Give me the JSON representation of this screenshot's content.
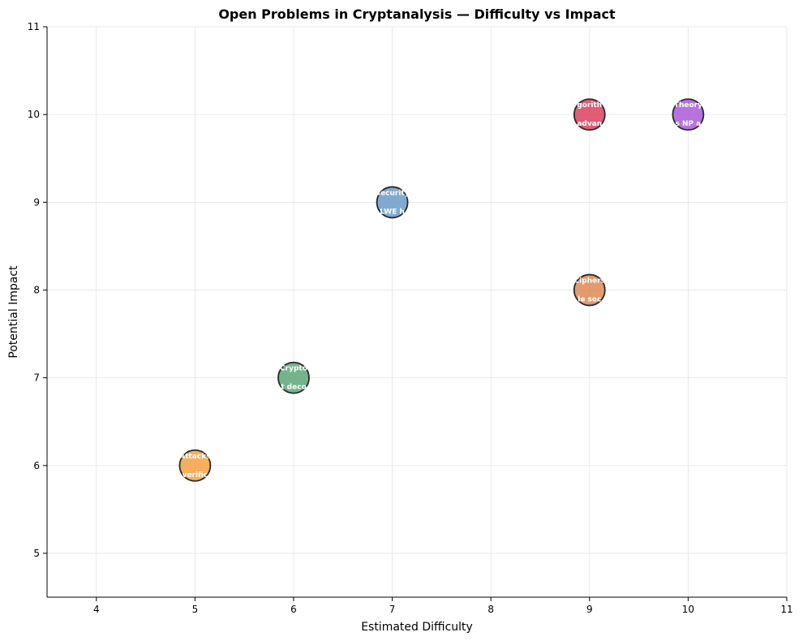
{
  "chart_data": {
    "type": "scatter",
    "title": "Open Problems in Cryptanalysis — Difficulty vs Impact",
    "xlabel": "Estimated Difficulty",
    "ylabel": "Potential Impact",
    "xlim": [
      3.5,
      11
    ],
    "ylim": [
      4.5,
      11
    ],
    "xticks": [
      4,
      5,
      6,
      7,
      8,
      9,
      10,
      11
    ],
    "yticks": [
      5,
      6,
      7,
      8,
      9,
      10,
      11
    ],
    "grid": true,
    "points": [
      {
        "x": 5,
        "y": 6,
        "color": "#F5A142",
        "label_top": "Attacks",
        "label_bottom": "verific"
      },
      {
        "x": 6,
        "y": 7,
        "color": "#5BA779",
        "label_top": "Crypto",
        "label_bottom": "t deco"
      },
      {
        "x": 7,
        "y": 9,
        "color": "#6B9BC8",
        "label_top": "Security",
        "label_bottom": "LWE h"
      },
      {
        "x": 9,
        "y": 8,
        "color": "#DC8A52",
        "label_top": "Ciphers",
        "label_bottom": "le sec"
      },
      {
        "x": 9,
        "y": 10,
        "color": "#DC3F5F",
        "label_top": "gorith",
        "label_bottom": "advan"
      },
      {
        "x": 10,
        "y": 10,
        "color": "#A95BD8",
        "label_top": "Theory",
        "label_bottom": "s NP a"
      }
    ]
  }
}
